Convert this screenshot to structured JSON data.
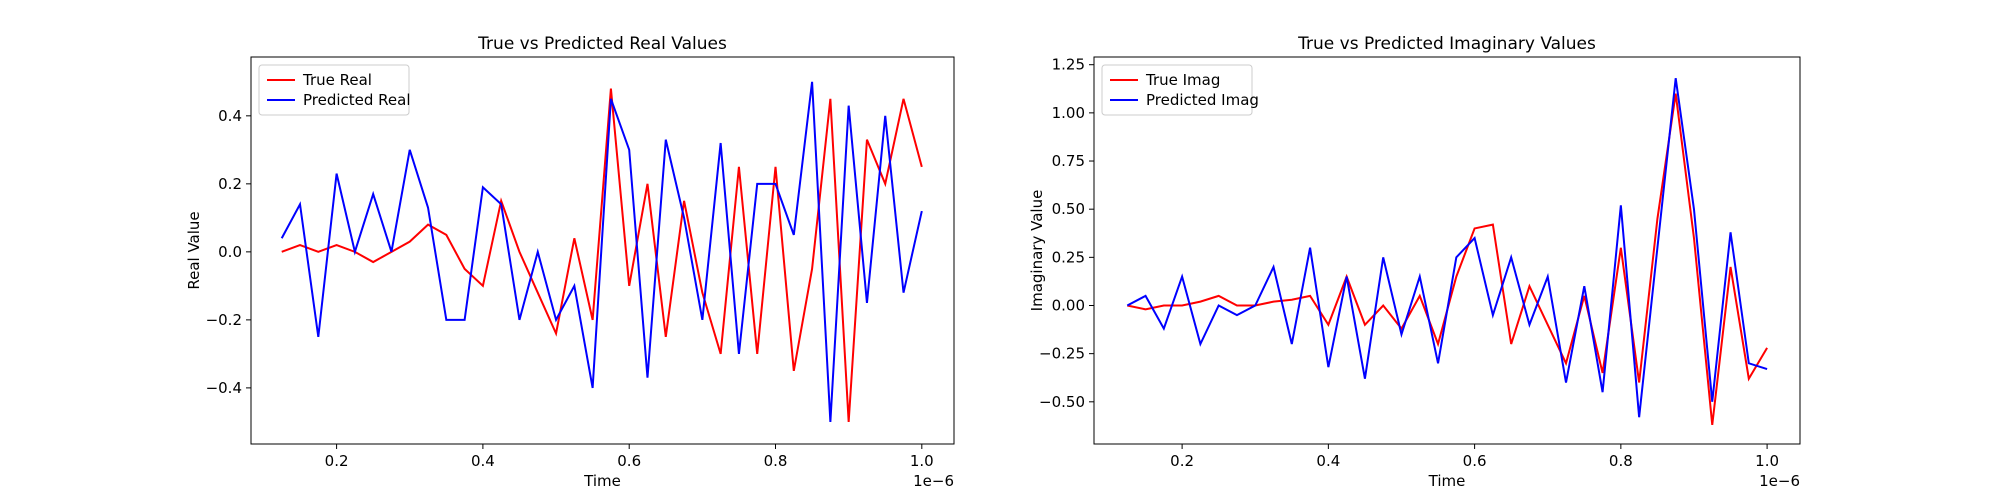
{
  "chart_data": [
    {
      "type": "line",
      "title": "True vs Predicted Real Values",
      "xlabel": "Time",
      "ylabel": "Real Value",
      "x_offset_label": "1e−6",
      "x": [
        0.125,
        0.15,
        0.175,
        0.2,
        0.225,
        0.25,
        0.275,
        0.3,
        0.325,
        0.35,
        0.375,
        0.4,
        0.425,
        0.45,
        0.475,
        0.5,
        0.525,
        0.55,
        0.575,
        0.6,
        0.625,
        0.65,
        0.675,
        0.7,
        0.725,
        0.75,
        0.775,
        0.8,
        0.825,
        0.85,
        0.875,
        0.9,
        0.925,
        0.95,
        0.975,
        1.0
      ],
      "series": [
        {
          "name": "True Real",
          "color": "#ff0000",
          "values": [
            0.0,
            0.02,
            0.0,
            0.02,
            0.0,
            -0.03,
            0.0,
            0.03,
            0.08,
            0.05,
            -0.05,
            -0.1,
            0.15,
            0.0,
            -0.12,
            -0.24,
            0.04,
            -0.2,
            0.48,
            -0.1,
            0.2,
            -0.25,
            0.15,
            -0.12,
            -0.3,
            0.25,
            -0.3,
            0.25,
            -0.35,
            -0.05,
            0.45,
            -0.5,
            0.33,
            0.2,
            0.45,
            0.25
          ]
        },
        {
          "name": "Predicted Real",
          "color": "#0000ff",
          "values": [
            0.04,
            0.14,
            -0.25,
            0.23,
            0.0,
            0.17,
            0.0,
            0.3,
            0.13,
            -0.2,
            -0.2,
            0.19,
            0.14,
            -0.2,
            0.0,
            -0.2,
            -0.1,
            -0.4,
            0.45,
            0.3,
            -0.37,
            0.33,
            0.1,
            -0.2,
            0.32,
            -0.3,
            0.2,
            0.2,
            0.05,
            0.5,
            -0.5,
            0.43,
            -0.15,
            0.4,
            -0.12,
            0.12
          ]
        }
      ],
      "xlim": [
        0.083,
        1.044
      ],
      "ylim": [
        -0.565,
        0.573
      ],
      "xticks": [
        0.2,
        0.4,
        0.6,
        0.8,
        {
          "value": 1.0,
          "label": "1.0"
        }
      ],
      "yticks": [
        {
          "value": -0.4,
          "label": "−0.4"
        },
        {
          "value": -0.2,
          "label": "−0.2"
        },
        {
          "value": 0,
          "label": "0.0"
        },
        0.2,
        0.4
      ],
      "legend": "upper left"
    },
    {
      "type": "line",
      "title": "True vs Predicted Imaginary Values",
      "xlabel": "Time",
      "ylabel": "Imaginary Value",
      "x_offset_label": "1e−6",
      "x": [
        0.125,
        0.15,
        0.175,
        0.2,
        0.225,
        0.25,
        0.275,
        0.3,
        0.325,
        0.35,
        0.375,
        0.4,
        0.425,
        0.45,
        0.475,
        0.5,
        0.525,
        0.55,
        0.575,
        0.6,
        0.625,
        0.65,
        0.675,
        0.7,
        0.725,
        0.75,
        0.775,
        0.8,
        0.825,
        0.85,
        0.875,
        0.9,
        0.925,
        0.95,
        0.975,
        1.0
      ],
      "series": [
        {
          "name": "True Imag",
          "color": "#ff0000",
          "values": [
            0.0,
            -0.02,
            0.0,
            0.0,
            0.02,
            0.05,
            0.0,
            0.0,
            0.02,
            0.03,
            0.05,
            -0.1,
            0.15,
            -0.1,
            0.0,
            -0.12,
            0.05,
            -0.2,
            0.15,
            0.4,
            0.42,
            -0.2,
            0.1,
            -0.1,
            -0.3,
            0.05,
            -0.35,
            0.3,
            -0.4,
            0.45,
            1.1,
            0.35,
            -0.62,
            0.2,
            -0.38,
            -0.22
          ]
        },
        {
          "name": "Predicted Imag",
          "color": "#0000ff",
          "values": [
            0.0,
            0.05,
            -0.12,
            0.15,
            -0.2,
            0.0,
            -0.05,
            0.0,
            0.2,
            -0.2,
            0.3,
            -0.32,
            0.15,
            -0.38,
            0.25,
            -0.15,
            0.15,
            -0.3,
            0.25,
            0.35,
            -0.05,
            0.25,
            -0.1,
            0.15,
            -0.4,
            0.1,
            -0.45,
            0.52,
            -0.58,
            0.3,
            1.18,
            0.5,
            -0.5,
            0.38,
            -0.3,
            -0.33
          ]
        }
      ],
      "xlim": [
        0.0795,
        1.045
      ],
      "ylim": [
        -0.719,
        1.29
      ],
      "xticks": [
        0.2,
        0.4,
        0.6,
        0.8,
        {
          "value": 1.0,
          "label": "1.0"
        }
      ],
      "yticks": [
        {
          "value": -0.5,
          "label": "−0.50"
        },
        {
          "value": -0.25,
          "label": "−0.25"
        },
        {
          "value": 0,
          "label": "0.00"
        },
        0.25,
        {
          "value": 0.5,
          "label": "0.50"
        },
        0.75,
        {
          "value": 1.0,
          "label": "1.00"
        },
        1.25
      ],
      "legend": "upper left"
    }
  ]
}
